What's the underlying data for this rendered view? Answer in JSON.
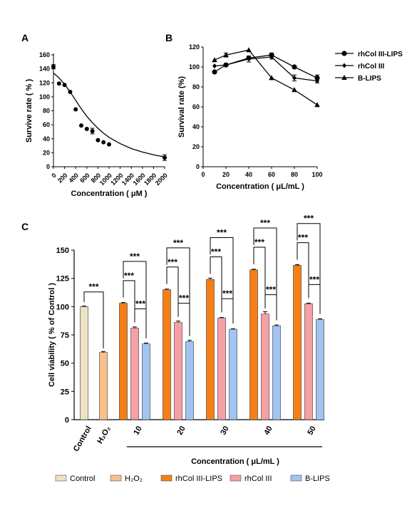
{
  "chart_data": [
    {
      "panel": "A",
      "type": "scatter",
      "xlabel": "Concentration ( μM )",
      "ylabel": "Survive rate ( % )",
      "xlim": [
        0,
        2000
      ],
      "ylim": [
        0,
        160
      ],
      "xticks": [
        0,
        200,
        400,
        600,
        800,
        1000,
        1200,
        1400,
        1600,
        1800,
        2000
      ],
      "yticks": [
        0,
        20,
        40,
        60,
        80,
        100,
        120,
        140,
        160
      ],
      "points": [
        {
          "x": 0,
          "y": 143,
          "err": 3
        },
        {
          "x": 100,
          "y": 119,
          "err": 1
        },
        {
          "x": 200,
          "y": 117,
          "err": 1
        },
        {
          "x": 300,
          "y": 107,
          "err": 1
        },
        {
          "x": 400,
          "y": 82,
          "err": 1
        },
        {
          "x": 500,
          "y": 59,
          "err": 1
        },
        {
          "x": 600,
          "y": 54,
          "err": 1
        },
        {
          "x": 700,
          "y": 51,
          "err": 4
        },
        {
          "x": 800,
          "y": 38,
          "err": 1
        },
        {
          "x": 900,
          "y": 35,
          "err": 1
        },
        {
          "x": 1000,
          "y": 32,
          "err": 1
        },
        {
          "x": 2000,
          "y": 13,
          "err": 4
        }
      ],
      "fit": [
        {
          "x": 0,
          "y": 134
        },
        {
          "x": 100,
          "y": 127
        },
        {
          "x": 200,
          "y": 118
        },
        {
          "x": 300,
          "y": 107
        },
        {
          "x": 400,
          "y": 95
        },
        {
          "x": 500,
          "y": 83
        },
        {
          "x": 600,
          "y": 72
        },
        {
          "x": 700,
          "y": 63
        },
        {
          "x": 800,
          "y": 55
        },
        {
          "x": 900,
          "y": 48
        },
        {
          "x": 1000,
          "y": 42
        },
        {
          "x": 1200,
          "y": 33
        },
        {
          "x": 1400,
          "y": 26
        },
        {
          "x": 1600,
          "y": 21
        },
        {
          "x": 1800,
          "y": 17
        },
        {
          "x": 2000,
          "y": 14
        }
      ]
    },
    {
      "panel": "B",
      "type": "line",
      "xlabel": "Concentration ( μL/mL )",
      "ylabel": "Survival rate (%)",
      "xlim": [
        0,
        100
      ],
      "ylim": [
        0,
        120
      ],
      "xticks": [
        0,
        20,
        40,
        60,
        80,
        100
      ],
      "yticks": [
        0,
        20,
        40,
        60,
        80,
        100,
        120
      ],
      "x": [
        10,
        20,
        40,
        60,
        80,
        100
      ],
      "series": [
        {
          "name": "rhCol III-LIPS",
          "marker": "circle",
          "values": [
            95,
            102,
            109,
            112,
            100,
            89
          ],
          "errors": [
            1,
            1,
            1,
            2,
            1,
            3
          ]
        },
        {
          "name": "rhCol III",
          "marker": "diamond",
          "values": [
            101,
            102,
            108,
            110,
            89,
            86
          ],
          "errors": [
            1,
            1,
            3,
            2,
            3,
            2
          ]
        },
        {
          "name": "B-LIPS",
          "marker": "triangle",
          "values": [
            107,
            112,
            117,
            89,
            77,
            62
          ],
          "errors": [
            1,
            2,
            1,
            1,
            1,
            1
          ]
        }
      ],
      "legend_position": "right"
    },
    {
      "panel": "C",
      "type": "bar",
      "ylabel": "Cell viability ( % of Control )",
      "xlabel": "Concentration ( μL/mL )",
      "ylim": [
        0,
        150
      ],
      "yticks": [
        0,
        25,
        50,
        75,
        100,
        125,
        150
      ],
      "controls": [
        {
          "label": "Control",
          "value": 100,
          "err": 0.5,
          "color": "#ede3c3"
        },
        {
          "label": "H₂O₂",
          "value": 59.5,
          "err": 0.8,
          "color": "#f9c08a"
        }
      ],
      "categories": [
        "10",
        "20",
        "30",
        "40",
        "50"
      ],
      "series": [
        {
          "name": "rhCol III-LIPS",
          "color": "#f57f17",
          "values": [
            103,
            115,
            124,
            132.5,
            136.5
          ],
          "errors": [
            0.6,
            0.5,
            1.2,
            0.6,
            0.6
          ]
        },
        {
          "name": "rhCol III",
          "color": "#f5a0a5",
          "values": [
            81,
            86,
            90,
            93.5,
            102.5
          ],
          "errors": [
            1.0,
            1.2,
            0.4,
            2.0,
            0.6
          ]
        },
        {
          "name": "B-LIPS",
          "color": "#a3c3f0",
          "values": [
            67,
            69,
            80,
            83,
            88.5
          ],
          "errors": [
            0.8,
            1.2,
            0.4,
            0.8,
            0.8
          ]
        }
      ],
      "significance": "***",
      "legend": [
        "Control",
        "H₂O₂",
        "rhCol III-LIPS",
        "rhCol III",
        "B-LIPS"
      ],
      "legend_position": "bottom"
    }
  ]
}
